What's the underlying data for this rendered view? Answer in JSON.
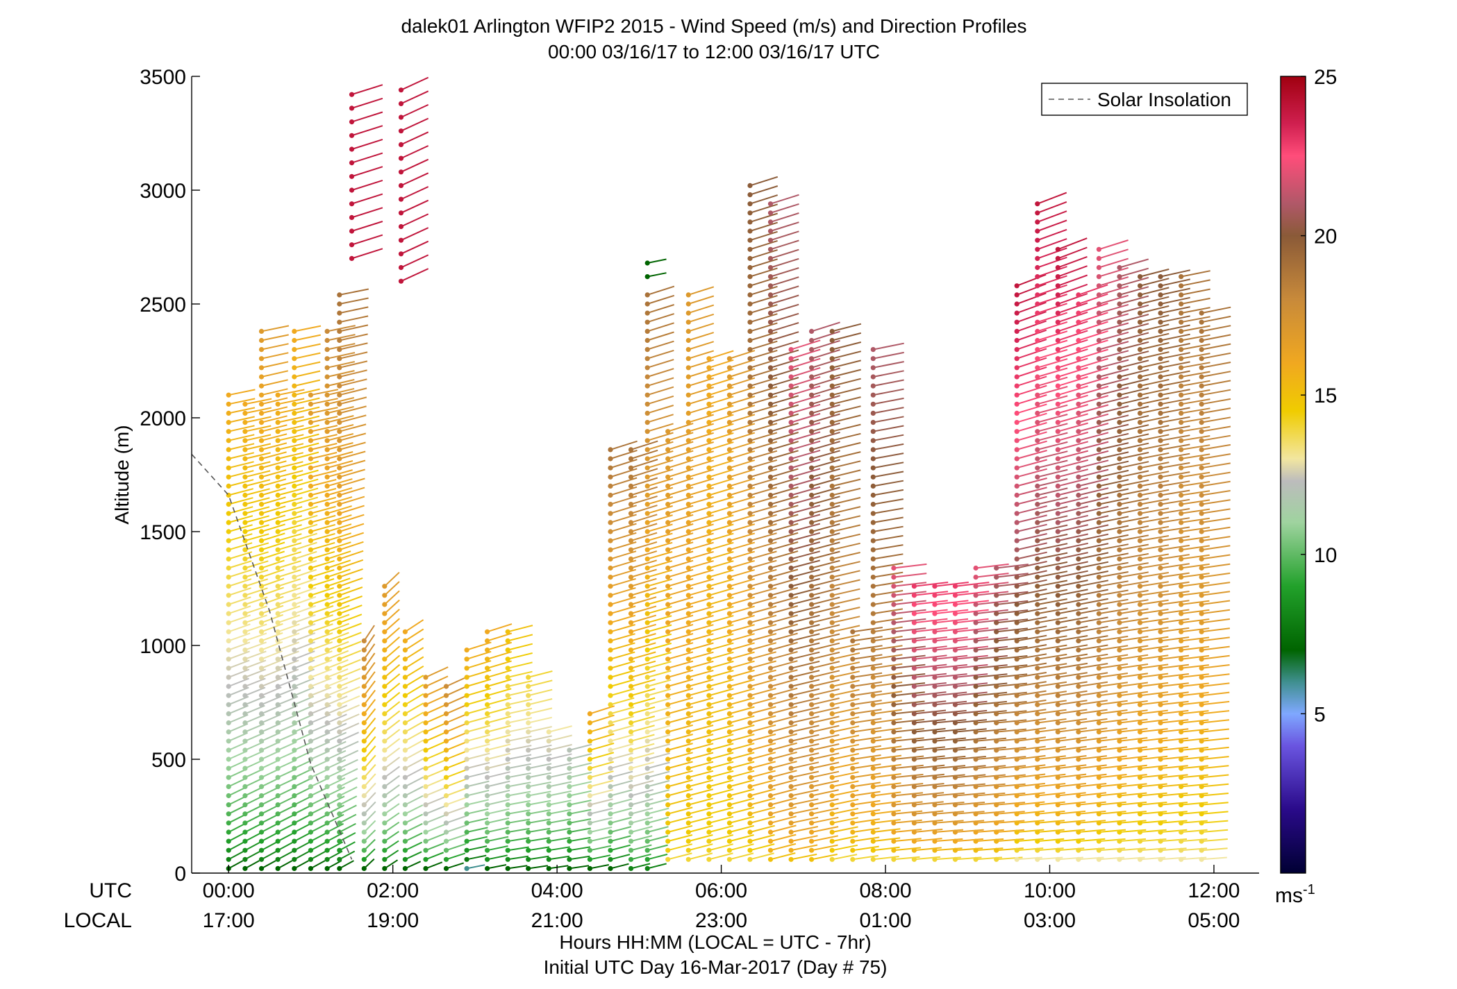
{
  "chart_data": {
    "type": "scatter",
    "title": "dalek01 Arlington WFIP2 2015 - Wind Speed (m/s) and Direction Profiles",
    "subtitle": "00:00 03/16/17 to 12:00 03/16/17  UTC",
    "ylabel": "Altitude (m)",
    "ylim": [
      0,
      3500
    ],
    "yticks": [
      "0",
      "500",
      "1000",
      "1500",
      "2000",
      "2500",
      "3000",
      "3500"
    ],
    "yticks_values": [
      0,
      500,
      1000,
      1500,
      2000,
      2500,
      3000,
      3500
    ],
    "xlim_hours": [
      -0.45,
      12.55
    ],
    "xticks_hours": [
      0,
      2,
      4,
      6,
      8,
      10,
      12
    ],
    "xticks_utc": [
      "00:00",
      "02:00",
      "04:00",
      "06:00",
      "08:00",
      "10:00",
      "12:00"
    ],
    "xticks_local": [
      "17:00",
      "19:00",
      "21:00",
      "23:00",
      "01:00",
      "03:00",
      "05:00"
    ],
    "row_label_utc": "UTC",
    "row_label_local": "LOCAL",
    "xlabel": "Hours HH:MM  (LOCAL = UTC - 7hr)",
    "xlabel2": "Initial UTC Day 16-Mar-2017 (Day # 75)",
    "legend": {
      "entries": [
        "Solar Insolation"
      ],
      "placement": "top-right",
      "line_style": "dashed",
      "line_color": "#555555"
    },
    "colorbar": {
      "min": 0,
      "max": 25,
      "ticks": [
        "5",
        "10",
        "15",
        "20",
        "25"
      ],
      "tick_values": [
        5,
        10,
        15,
        20,
        25
      ],
      "unit_base": "ms",
      "unit_exp": "-1",
      "stops": [
        {
          "v": 0,
          "c": "#000033"
        },
        {
          "v": 2,
          "c": "#2a0a8a"
        },
        {
          "v": 4,
          "c": "#6a55e0"
        },
        {
          "v": 5,
          "c": "#7fa8ff"
        },
        {
          "v": 6,
          "c": "#3f8f8f"
        },
        {
          "v": 7,
          "c": "#006400"
        },
        {
          "v": 9,
          "c": "#22a12b"
        },
        {
          "v": 11,
          "c": "#9fd39f"
        },
        {
          "v": 12.3,
          "c": "#bcbcbc"
        },
        {
          "v": 13,
          "c": "#f2e6a0"
        },
        {
          "v": 14.5,
          "c": "#f0cc00"
        },
        {
          "v": 16,
          "c": "#f0a820"
        },
        {
          "v": 18,
          "c": "#c88a3a"
        },
        {
          "v": 20,
          "c": "#8a5a38"
        },
        {
          "v": 21,
          "c": "#b05868"
        },
        {
          "v": 22.5,
          "c": "#ff4d7a"
        },
        {
          "v": 23.5,
          "c": "#d02050"
        },
        {
          "v": 25,
          "c": "#a00010"
        }
      ]
    },
    "solar_insolation_line": [
      [
        -0.45,
        1840
      ],
      [
        0.0,
        1660
      ],
      [
        0.5,
        1150
      ],
      [
        1.0,
        480
      ],
      [
        1.5,
        60
      ]
    ],
    "wind_columns": [
      {
        "t": 0.0,
        "z0": 20,
        "z1": 2120,
        "s0": 7,
        "s1": 16,
        "d0": 225,
        "d1": 250
      },
      {
        "t": 0.2,
        "z0": 20,
        "z1": 2080,
        "s0": 7,
        "s1": 16,
        "d0": 225,
        "d1": 250
      },
      {
        "t": 0.4,
        "z0": 20,
        "z1": 2400,
        "s0": 7,
        "s1": 17,
        "d0": 225,
        "d1": 250
      },
      {
        "t": 0.6,
        "z0": 20,
        "z1": 2120,
        "s0": 7,
        "s1": 16,
        "d0": 225,
        "d1": 250
      },
      {
        "t": 0.8,
        "z0": 20,
        "z1": 2400,
        "s0": 7,
        "s1": 16,
        "d0": 225,
        "d1": 250
      },
      {
        "t": 1.0,
        "z0": 20,
        "z1": 2120,
        "s0": 7,
        "s1": 17,
        "d0": 225,
        "d1": 250
      },
      {
        "t": 1.2,
        "z0": 20,
        "z1": 2400,
        "s0": 7,
        "s1": 18,
        "d0": 225,
        "d1": 250
      },
      {
        "t": 1.35,
        "z0": 20,
        "z1": 2540,
        "s0": 7,
        "s1": 19,
        "d0": 225,
        "d1": 250
      },
      {
        "t": 1.65,
        "z0": 20,
        "z1": 1020,
        "s0": 7,
        "s1": 18,
        "d0": 210,
        "d1": 200
      },
      {
        "t": 1.9,
        "z0": 20,
        "z1": 1270,
        "s0": 7,
        "s1": 17,
        "d0": 220,
        "d1": 210
      },
      {
        "t": 2.15,
        "z0": 20,
        "z1": 1060,
        "s0": 7,
        "s1": 16,
        "d0": 230,
        "d1": 220
      },
      {
        "t": 2.4,
        "z0": 20,
        "z1": 870,
        "s0": 7,
        "s1": 17,
        "d0": 235,
        "d1": 230
      },
      {
        "t": 2.65,
        "z0": 20,
        "z1": 850,
        "s0": 7,
        "s1": 18,
        "d0": 240,
        "d1": 230
      },
      {
        "t": 2.9,
        "z0": 20,
        "z1": 1000,
        "s0": 6,
        "s1": 16,
        "d0": 250,
        "d1": 240
      },
      {
        "t": 3.15,
        "z0": 20,
        "z1": 1060,
        "s0": 7,
        "s1": 16,
        "d0": 250,
        "d1": 240
      },
      {
        "t": 3.4,
        "z0": 20,
        "z1": 1060,
        "s0": 7,
        "s1": 15,
        "d0": 255,
        "d1": 245
      },
      {
        "t": 3.65,
        "z0": 20,
        "z1": 860,
        "s0": 7,
        "s1": 14,
        "d0": 255,
        "d1": 245
      },
      {
        "t": 3.9,
        "z0": 20,
        "z1": 620,
        "s0": 7,
        "s1": 13,
        "d0": 255,
        "d1": 245
      },
      {
        "t": 4.15,
        "z0": 20,
        "z1": 540,
        "s0": 7,
        "s1": 12,
        "d0": 255,
        "d1": 245
      },
      {
        "t": 4.4,
        "z0": 20,
        "z1": 700,
        "s0": 7,
        "s1": 16,
        "d0": 250,
        "d1": 240
      },
      {
        "t": 4.65,
        "z0": 20,
        "z1": 1880,
        "s0": 7,
        "s1": 19,
        "d0": 245,
        "d1": 240
      },
      {
        "t": 4.9,
        "z0": 20,
        "z1": 1860,
        "s0": 8,
        "s1": 19,
        "d0": 245,
        "d1": 240
      },
      {
        "t": 5.1,
        "z0": 20,
        "z1": 2540,
        "s0": 8,
        "s1": 19,
        "d0": 245,
        "d1": 240
      },
      {
        "t": 5.35,
        "z0": 60,
        "z1": 1960,
        "s0": 14,
        "s1": 17,
        "d0": 245,
        "d1": 240
      },
      {
        "t": 5.6,
        "z0": 60,
        "z1": 2540,
        "s0": 14,
        "s1": 17,
        "d0": 245,
        "d1": 240
      },
      {
        "t": 5.85,
        "z0": 60,
        "z1": 2280,
        "s0": 14,
        "s1": 16,
        "d0": 245,
        "d1": 240
      },
      {
        "t": 6.1,
        "z0": 60,
        "z1": 2260,
        "s0": 14,
        "s1": 17,
        "d0": 245,
        "d1": 240
      },
      {
        "t": 6.35,
        "z0": 60,
        "z1": 3040,
        "s0": 14,
        "s1": 20,
        "d0": 245,
        "d1": 240
      },
      {
        "t": 6.6,
        "z0": 60,
        "z1": 2960,
        "s0": 15,
        "s1": 21,
        "d0": 245,
        "d1": 240
      },
      {
        "t": 6.85,
        "z0": 60,
        "z1": 2320,
        "s0": 15,
        "s1": 22,
        "d0": 250,
        "d1": 240
      },
      {
        "t": 7.1,
        "z0": 60,
        "z1": 2400,
        "s0": 15,
        "s1": 21,
        "d0": 250,
        "d1": 240
      },
      {
        "t": 7.35,
        "z0": 60,
        "z1": 2400,
        "s0": 14,
        "s1": 20,
        "d0": 250,
        "d1": 245
      },
      {
        "t": 7.6,
        "z0": 60,
        "z1": 1080,
        "s0": 14,
        "s1": 19,
        "d0": 255,
        "d1": 255
      },
      {
        "t": 7.85,
        "z0": 60,
        "z1": 2320,
        "s0": 14,
        "s1": 21,
        "d0": 258,
        "d1": 250
      },
      {
        "t": 8.1,
        "z0": 60,
        "z1": 1350,
        "s0": 14,
        "s1": 22,
        "d0": 260,
        "d1": 258
      },
      {
        "t": 8.35,
        "z0": 60,
        "z1": 1270,
        "s0": 14,
        "s1": 23,
        "d0": 260,
        "d1": 258
      },
      {
        "t": 8.6,
        "z0": 60,
        "z1": 1270,
        "s0": 14,
        "s1": 23,
        "d0": 262,
        "d1": 258
      },
      {
        "t": 8.85,
        "z0": 60,
        "z1": 1280,
        "s0": 14,
        "s1": 23,
        "d0": 262,
        "d1": 258
      },
      {
        "t": 9.1,
        "z0": 60,
        "z1": 1350,
        "s0": 14,
        "s1": 22,
        "d0": 262,
        "d1": 258
      },
      {
        "t": 9.35,
        "z0": 60,
        "z1": 1350,
        "s0": 14,
        "s1": 21,
        "d0": 262,
        "d1": 258
      },
      {
        "t": 9.6,
        "z0": 60,
        "z1": 2600,
        "s0": 13,
        "s1": 24,
        "d0": 262,
        "d1": 235
      },
      {
        "t": 9.85,
        "z0": 60,
        "z1": 2960,
        "s0": 13,
        "s1": 24,
        "d0": 262,
        "d1": 235
      },
      {
        "t": 10.1,
        "z0": 60,
        "z1": 2760,
        "s0": 13,
        "s1": 24,
        "d0": 262,
        "d1": 235
      },
      {
        "t": 10.35,
        "z0": 60,
        "z1": 2540,
        "s0": 13,
        "s1": 23,
        "d0": 262,
        "d1": 238
      },
      {
        "t": 10.6,
        "z0": 60,
        "z1": 2760,
        "s0": 13,
        "s1": 22,
        "d0": 262,
        "d1": 240
      },
      {
        "t": 10.85,
        "z0": 60,
        "z1": 2690,
        "s0": 13,
        "s1": 21,
        "d0": 262,
        "d1": 242
      },
      {
        "t": 11.1,
        "z0": 60,
        "z1": 2620,
        "s0": 13,
        "s1": 20,
        "d0": 262,
        "d1": 245
      },
      {
        "t": 11.35,
        "z0": 60,
        "z1": 2620,
        "s0": 13,
        "s1": 20,
        "d0": 262,
        "d1": 248
      },
      {
        "t": 11.6,
        "z0": 60,
        "z1": 2620,
        "s0": 13,
        "s1": 19,
        "d0": 262,
        "d1": 250
      },
      {
        "t": 11.85,
        "z0": 60,
        "z1": 2470,
        "s0": 13,
        "s1": 19,
        "d0": 262,
        "d1": 250
      }
    ],
    "upper_segments": [
      {
        "t": 1.5,
        "z0": 2700,
        "z1": 3470,
        "s": 24,
        "d": 240
      },
      {
        "t": 2.1,
        "z0": 2600,
        "z1": 3440,
        "s": 24,
        "d": 230
      },
      {
        "t": 5.1,
        "z0": 2620,
        "z1": 2700,
        "s": 7,
        "d": 250
      }
    ]
  }
}
